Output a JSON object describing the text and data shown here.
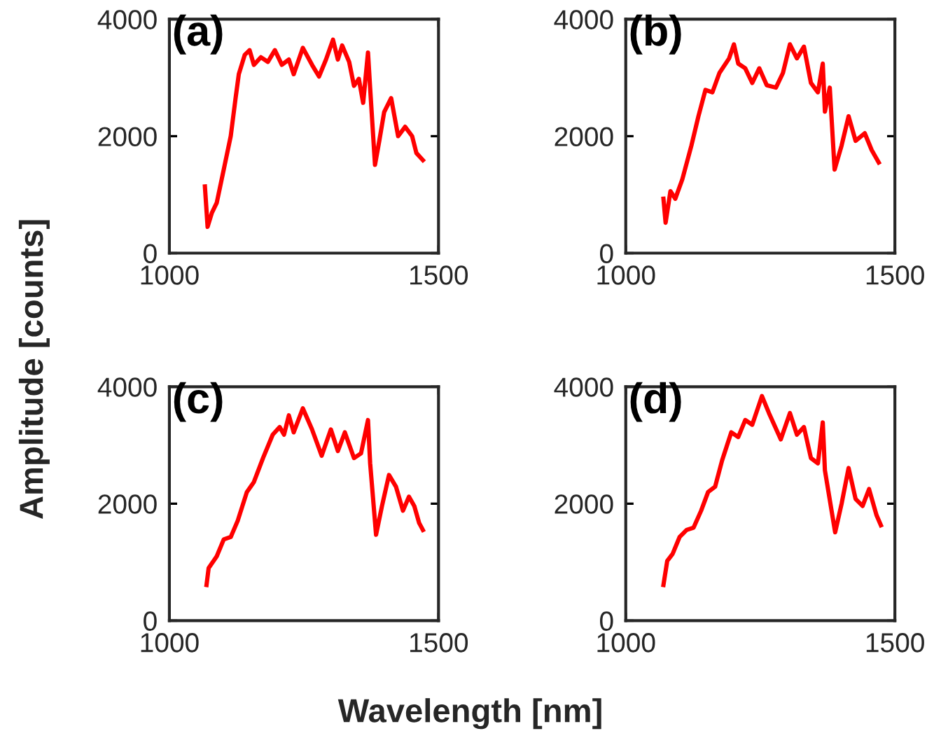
{
  "chart_data": [
    {
      "type": "line",
      "title": "(a)",
      "xlabel": "Wavelength [nm]",
      "ylabel": "Amplitude [counts]",
      "xlim": [
        1000,
        1500
      ],
      "ylim": [
        0,
        4000
      ],
      "xticks": [
        1000,
        1500
      ],
      "yticks": [
        0,
        2000,
        4000
      ],
      "grid": false,
      "legend": false,
      "series": [
        {
          "color": "#ff0000",
          "x": [
            1066,
            1071,
            1079,
            1088,
            1101,
            1114,
            1123,
            1129,
            1140,
            1149,
            1157,
            1170,
            1183,
            1196,
            1209,
            1222,
            1231,
            1248,
            1265,
            1278,
            1291,
            1304,
            1313,
            1321,
            1334,
            1343,
            1352,
            1360,
            1369,
            1373,
            1382,
            1390,
            1399,
            1412,
            1425,
            1438,
            1451,
            1459,
            1471
          ],
          "values": [
            1140,
            450,
            690,
            860,
            1430,
            2000,
            2650,
            3060,
            3390,
            3470,
            3220,
            3350,
            3270,
            3470,
            3220,
            3310,
            3060,
            3510,
            3220,
            3020,
            3310,
            3650,
            3310,
            3550,
            3270,
            2860,
            2980,
            2570,
            3430,
            2820,
            1510,
            1920,
            2410,
            2650,
            2000,
            2160,
            2000,
            1710,
            1590
          ]
        }
      ]
    },
    {
      "type": "line",
      "title": "(b)",
      "xlim": [
        1000,
        1500
      ],
      "ylim": [
        0,
        4000
      ],
      "xticks": [
        1000,
        1500
      ],
      "yticks": [
        0,
        2000,
        4000
      ],
      "grid": false,
      "legend": false,
      "series": [
        {
          "color": "#ff0000",
          "x": [
            1070,
            1074,
            1083,
            1092,
            1105,
            1122,
            1135,
            1148,
            1161,
            1174,
            1192,
            1201,
            1209,
            1222,
            1235,
            1248,
            1262,
            1279,
            1292,
            1305,
            1318,
            1331,
            1344,
            1357,
            1366,
            1370,
            1379,
            1388,
            1401,
            1414,
            1427,
            1444,
            1457,
            1470
          ],
          "values": [
            930,
            520,
            1060,
            930,
            1260,
            1840,
            2340,
            2790,
            2750,
            3080,
            3330,
            3570,
            3240,
            3160,
            2910,
            3160,
            2870,
            2830,
            3080,
            3570,
            3330,
            3530,
            2910,
            2750,
            3240,
            2420,
            2830,
            1430,
            1840,
            2340,
            1920,
            2050,
            1760,
            1550
          ]
        }
      ]
    },
    {
      "type": "line",
      "title": "(c)",
      "xlim": [
        1000,
        1500
      ],
      "ylim": [
        0,
        4000
      ],
      "xticks": [
        1000,
        1500
      ],
      "yticks": [
        0,
        2000,
        4000
      ],
      "grid": false,
      "legend": false,
      "series": [
        {
          "color": "#ff0000",
          "x": [
            1069,
            1073,
            1088,
            1101,
            1114,
            1127,
            1144,
            1157,
            1174,
            1192,
            1205,
            1213,
            1222,
            1231,
            1248,
            1265,
            1283,
            1300,
            1313,
            1326,
            1343,
            1356,
            1369,
            1373,
            1384,
            1395,
            1408,
            1421,
            1434,
            1445,
            1455,
            1464,
            1471
          ],
          "values": [
            610,
            900,
            1100,
            1390,
            1430,
            1710,
            2200,
            2370,
            2780,
            3180,
            3310,
            3180,
            3510,
            3220,
            3630,
            3270,
            2820,
            3270,
            2900,
            3220,
            2780,
            2860,
            3430,
            2690,
            1470,
            1960,
            2490,
            2290,
            1880,
            2120,
            1960,
            1670,
            1550
          ]
        }
      ]
    },
    {
      "type": "line",
      "title": "(d)",
      "xlim": [
        1000,
        1500
      ],
      "ylim": [
        0,
        4000
      ],
      "xticks": [
        1000,
        1500
      ],
      "yticks": [
        0,
        2000,
        4000
      ],
      "grid": false,
      "legend": false,
      "series": [
        {
          "color": "#ff0000",
          "x": [
            1070,
            1077,
            1087,
            1100,
            1113,
            1126,
            1140,
            1153,
            1166,
            1179,
            1196,
            1209,
            1222,
            1235,
            1253,
            1266,
            1288,
            1305,
            1318,
            1331,
            1344,
            1357,
            1366,
            1370,
            1389,
            1401,
            1414,
            1427,
            1440,
            1452,
            1466,
            1474
          ],
          "values": [
            610,
            1020,
            1140,
            1430,
            1550,
            1590,
            1880,
            2200,
            2290,
            2740,
            3220,
            3140,
            3430,
            3350,
            3840,
            3550,
            3100,
            3550,
            3180,
            3310,
            2780,
            2690,
            3390,
            2570,
            1510,
            2000,
            2610,
            2080,
            1960,
            2250,
            1800,
            1630
          ]
        }
      ]
    }
  ]
}
